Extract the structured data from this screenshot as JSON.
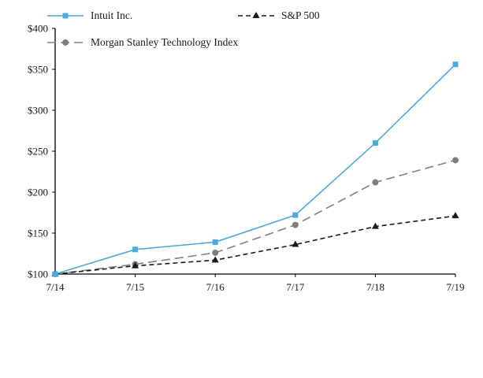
{
  "chart_data": {
    "type": "line",
    "title": "",
    "xlabel": "",
    "ylabel": "",
    "categories": [
      "7/14",
      "7/15",
      "7/16",
      "7/17",
      "7/18",
      "7/19"
    ],
    "ylim": [
      100,
      400
    ],
    "grid": false,
    "legend_position": "bottom",
    "y_ticks": [
      {
        "value": 100,
        "label": "$100"
      },
      {
        "value": 150,
        "label": "$150"
      },
      {
        "value": 200,
        "label": "$200"
      },
      {
        "value": 250,
        "label": "$250"
      },
      {
        "value": 300,
        "label": "$300"
      },
      {
        "value": 350,
        "label": "$350"
      },
      {
        "value": 400,
        "label": "$400"
      }
    ],
    "series": [
      {
        "name": "Morgan Stanley Technology Index",
        "values": [
          100,
          112,
          126,
          160,
          212,
          239
        ],
        "color": "#808080",
        "marker": "circle",
        "dash": "11 6"
      },
      {
        "name": "S&P 500",
        "values": [
          100,
          110,
          117,
          136,
          158,
          171
        ],
        "color": "#1a1a1a",
        "marker": "triangle",
        "dash": "6 4"
      },
      {
        "name": "Intuit Inc.",
        "values": [
          100,
          130,
          139,
          172,
          260,
          356
        ],
        "color": "#4FA8DC",
        "marker": "square",
        "dash": ""
      }
    ],
    "legend_order": [
      2,
      1,
      0
    ]
  },
  "colors": {
    "axis": "#000000",
    "background": "#ffffff"
  }
}
